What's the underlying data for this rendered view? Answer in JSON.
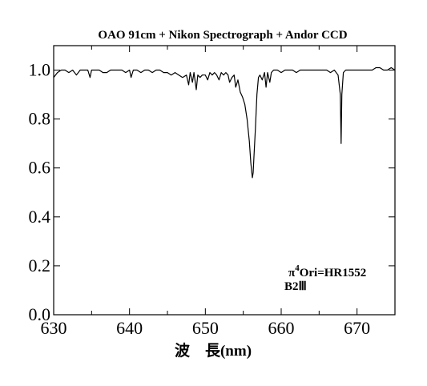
{
  "chart_data": {
    "type": "line",
    "title": "OAO 91cm + Nikon Spectrograph + Andor CCD",
    "xlabel": "波　長(nm)",
    "ylabel": "",
    "xlim": [
      630,
      675
    ],
    "ylim": [
      0.0,
      1.1
    ],
    "x_ticks": [
      "630",
      "640",
      "650",
      "660",
      "670"
    ],
    "y_ticks": [
      "0.0",
      "0.2",
      "0.4",
      "0.6",
      "0.8",
      "1.0"
    ],
    "grid": false,
    "legend": "none",
    "line_color": "#000000",
    "annotation": {
      "star_symbol": "π",
      "star_superscript": "4",
      "star_name": "Ori=HR1552",
      "spectral_type": "B2Ⅲ"
    },
    "series": [
      {
        "x": [
          630.0,
          630.5,
          631.0,
          631.5,
          632.0,
          632.5,
          633.0,
          633.5,
          634.0,
          634.5,
          634.8,
          635.0,
          635.5,
          636.0,
          636.5,
          637.0,
          637.5,
          638.0,
          638.5,
          639.0,
          639.5,
          640.0,
          640.2,
          640.5,
          641.0,
          641.5,
          642.0,
          642.5,
          643.0,
          643.5,
          644.0,
          644.5,
          645.0,
          645.5,
          646.0,
          646.5,
          647.0,
          647.5,
          647.8,
          648.0,
          648.3,
          648.5,
          648.8,
          649.0,
          649.3,
          649.6,
          650.0,
          650.3,
          650.6,
          650.9,
          651.2,
          651.5,
          651.8,
          652.1,
          652.4,
          652.7,
          653.0,
          653.2,
          653.5,
          653.8,
          654.0,
          654.3,
          654.6,
          654.9,
          655.2,
          655.5,
          655.8,
          656.0,
          656.2,
          656.3,
          656.4,
          656.6,
          656.8,
          657.0,
          657.2,
          657.5,
          657.8,
          658.0,
          658.2,
          658.5,
          658.7,
          659.0,
          659.5,
          660.0,
          660.5,
          661.0,
          661.5,
          662.0,
          662.5,
          663.0,
          663.5,
          664.0,
          664.5,
          665.0,
          665.5,
          666.0,
          666.5,
          667.0,
          667.5,
          667.8,
          667.9,
          668.0,
          668.2,
          668.5,
          669.0,
          669.5,
          670.0,
          670.5,
          671.0,
          671.5,
          672.0,
          672.5,
          673.0,
          673.5,
          674.0,
          674.5,
          675.0
        ],
        "y": [
          0.97,
          0.99,
          1.0,
          1.0,
          0.99,
          1.0,
          0.98,
          1.0,
          1.0,
          1.0,
          0.97,
          1.0,
          1.0,
          1.0,
          0.99,
          0.99,
          1.0,
          1.0,
          1.0,
          1.0,
          0.99,
          1.0,
          0.97,
          1.0,
          1.0,
          0.99,
          1.0,
          1.0,
          0.99,
          1.0,
          1.0,
          0.99,
          0.99,
          0.98,
          0.99,
          0.98,
          0.97,
          0.98,
          0.94,
          0.99,
          0.95,
          0.99,
          0.92,
          0.98,
          0.97,
          0.98,
          0.98,
          0.96,
          0.99,
          0.98,
          0.99,
          0.98,
          0.96,
          0.99,
          0.98,
          0.99,
          0.98,
          0.95,
          0.97,
          0.98,
          0.93,
          0.96,
          0.91,
          0.89,
          0.86,
          0.8,
          0.71,
          0.62,
          0.56,
          0.58,
          0.64,
          0.76,
          0.9,
          0.97,
          0.98,
          0.96,
          0.99,
          0.93,
          0.99,
          0.95,
          0.99,
          1.0,
          1.0,
          0.99,
          1.0,
          1.0,
          1.0,
          0.99,
          1.0,
          1.0,
          1.0,
          1.0,
          1.0,
          1.0,
          1.0,
          1.0,
          0.99,
          1.0,
          0.98,
          0.9,
          0.7,
          0.9,
          0.99,
          1.0,
          1.0,
          1.0,
          1.0,
          1.0,
          1.0,
          1.0,
          1.0,
          1.01,
          1.01,
          1.0,
          1.0,
          1.01,
          1.0
        ]
      }
    ]
  }
}
